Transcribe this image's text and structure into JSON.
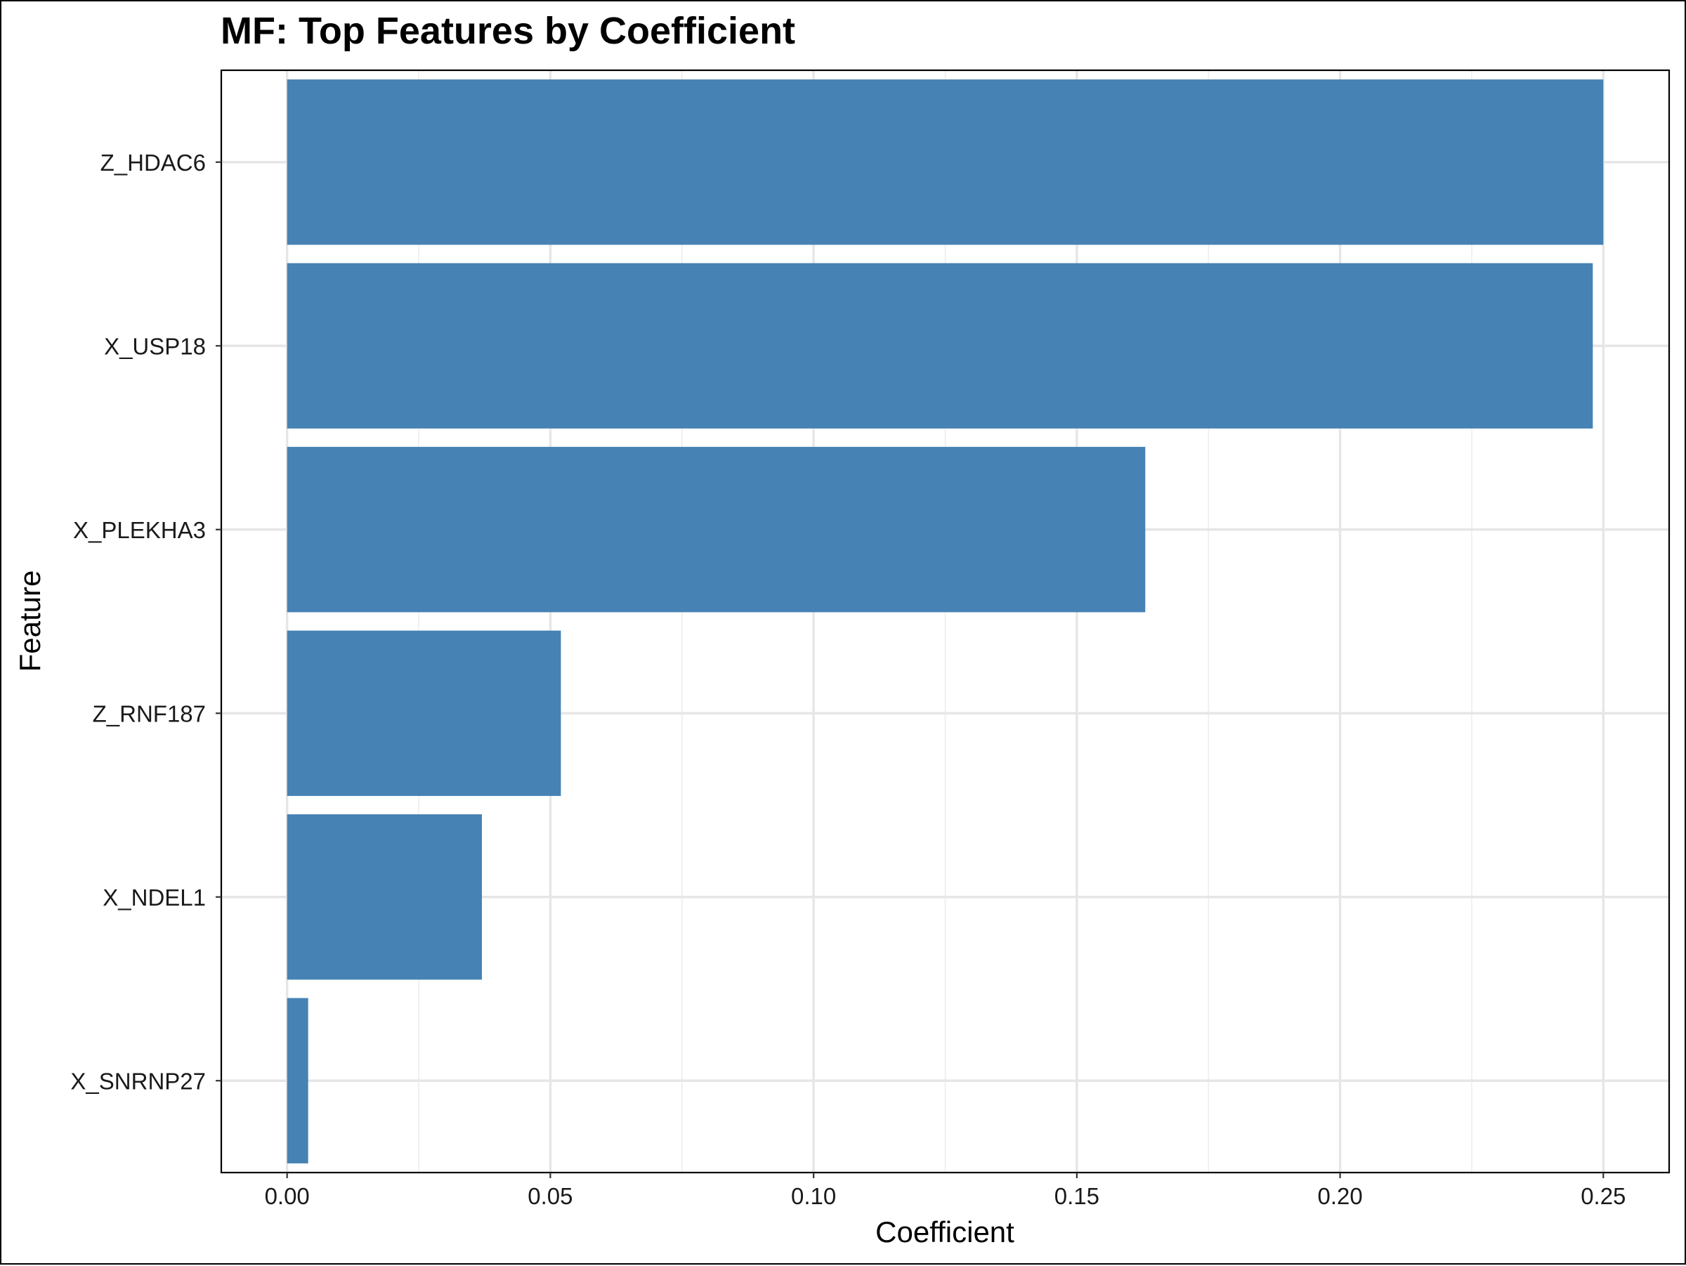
{
  "chart_data": {
    "type": "bar",
    "orientation": "horizontal",
    "title": "MF: Top Features by Coefficient",
    "xlabel": "Coefficient",
    "ylabel": "Feature",
    "categories": [
      "Z_HDAC6",
      "X_USP18",
      "X_PLEKHA3",
      "Z_RNF187",
      "X_NDEL1",
      "X_SNRNP27"
    ],
    "values": [
      0.25,
      0.248,
      0.163,
      0.052,
      0.037,
      0.004
    ],
    "xlim": [
      -0.0125,
      0.2625
    ],
    "xticks": [
      0.0,
      0.05,
      0.1,
      0.15,
      0.2,
      0.25
    ],
    "xtick_labels": [
      "0.00",
      "0.05",
      "0.10",
      "0.15",
      "0.20",
      "0.25"
    ],
    "grid": true,
    "legend": "none",
    "bar_color": "#4682B4"
  }
}
